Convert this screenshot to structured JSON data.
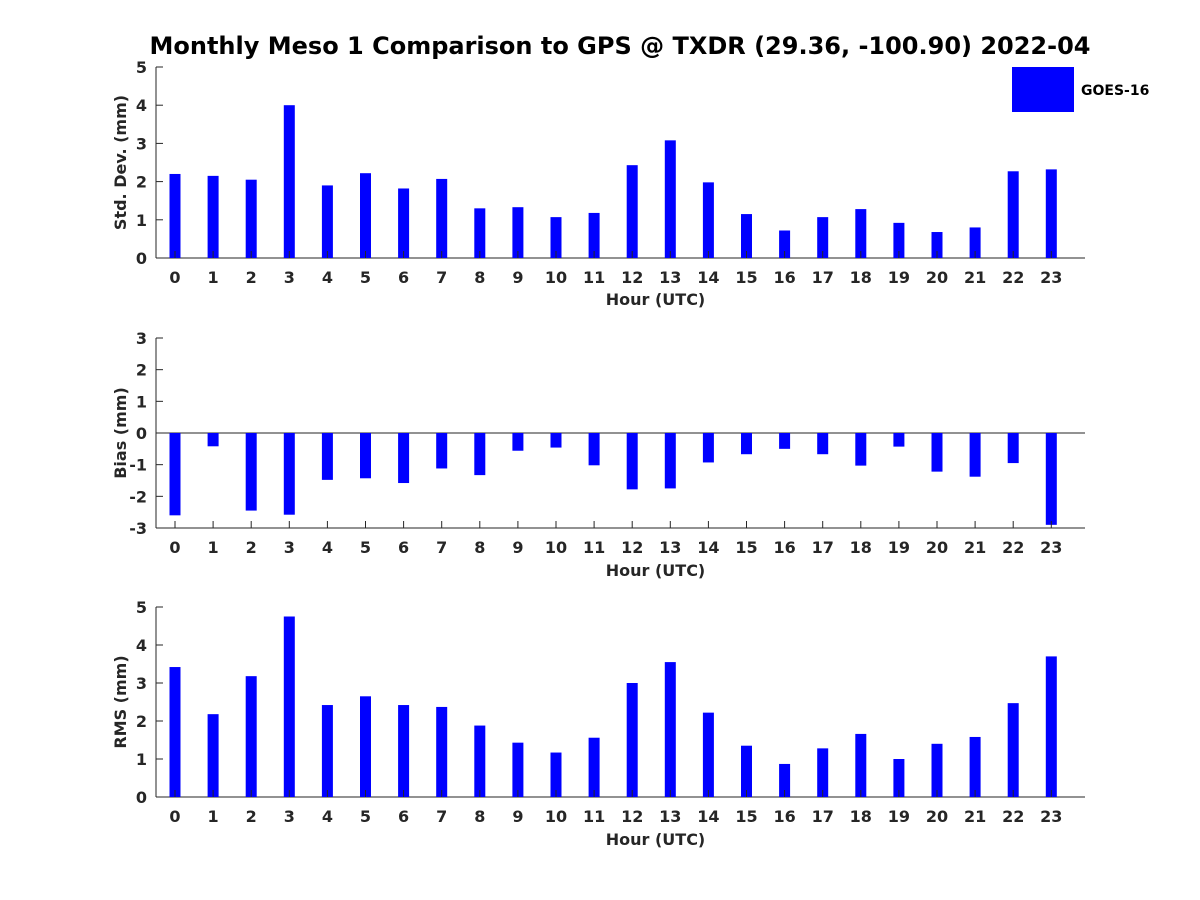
{
  "chart_data": {
    "title": "Monthly Meso 1 Comparison to GPS @ TXDR (29.36, -100.90) 2022-04",
    "type": "bar",
    "bar_color": "#0000ff",
    "legend": {
      "label": "GOES-16",
      "position": "top-right"
    },
    "categories": [
      "0",
      "1",
      "2",
      "3",
      "4",
      "5",
      "6",
      "7",
      "8",
      "9",
      "10",
      "11",
      "12",
      "13",
      "14",
      "15",
      "16",
      "17",
      "18",
      "19",
      "20",
      "21",
      "22",
      "23"
    ],
    "panels": [
      {
        "id": "std",
        "ylabel": "Std. Dev. (mm)",
        "xlabel": "Hour (UTC)",
        "ylim": [
          0,
          5
        ],
        "yticks": [
          0,
          1,
          2,
          3,
          4,
          5
        ],
        "zero_line": false,
        "series": [
          {
            "name": "GOES-16",
            "values": [
              2.2,
              2.15,
              2.05,
              4.0,
              1.9,
              2.22,
              1.82,
              2.07,
              1.3,
              1.33,
              1.07,
              1.18,
              2.43,
              3.08,
              1.98,
              1.15,
              0.72,
              1.07,
              1.28,
              0.92,
              0.68,
              0.8,
              2.27,
              2.32
            ]
          }
        ]
      },
      {
        "id": "bias",
        "ylabel": "Bias (mm)",
        "xlabel": "Hour (UTC)",
        "ylim": [
          -3,
          3
        ],
        "yticks": [
          -3,
          -2,
          -1,
          0,
          1,
          2,
          3
        ],
        "zero_line": true,
        "series": [
          {
            "name": "GOES-16",
            "values": [
              -2.6,
              -0.42,
              -2.45,
              -2.58,
              -1.48,
              -1.43,
              -1.58,
              -1.12,
              -1.33,
              -0.56,
              -0.46,
              -1.02,
              -1.78,
              -1.75,
              -0.93,
              -0.67,
              -0.5,
              -0.67,
              -1.03,
              -0.43,
              -1.22,
              -1.38,
              -0.95,
              -2.9
            ]
          }
        ]
      },
      {
        "id": "rms",
        "ylabel": "RMS (mm)",
        "xlabel": "Hour (UTC)",
        "ylim": [
          0,
          5
        ],
        "yticks": [
          0,
          1,
          2,
          3,
          4,
          5
        ],
        "zero_line": false,
        "series": [
          {
            "name": "GOES-16",
            "values": [
              3.42,
              2.18,
              3.18,
              4.75,
              2.42,
              2.65,
              2.42,
              2.37,
              1.88,
              1.43,
              1.17,
              1.56,
              3.0,
              3.55,
              2.22,
              1.35,
              0.87,
              1.28,
              1.66,
              1.0,
              1.4,
              1.58,
              2.47,
              3.7
            ]
          }
        ]
      }
    ]
  }
}
